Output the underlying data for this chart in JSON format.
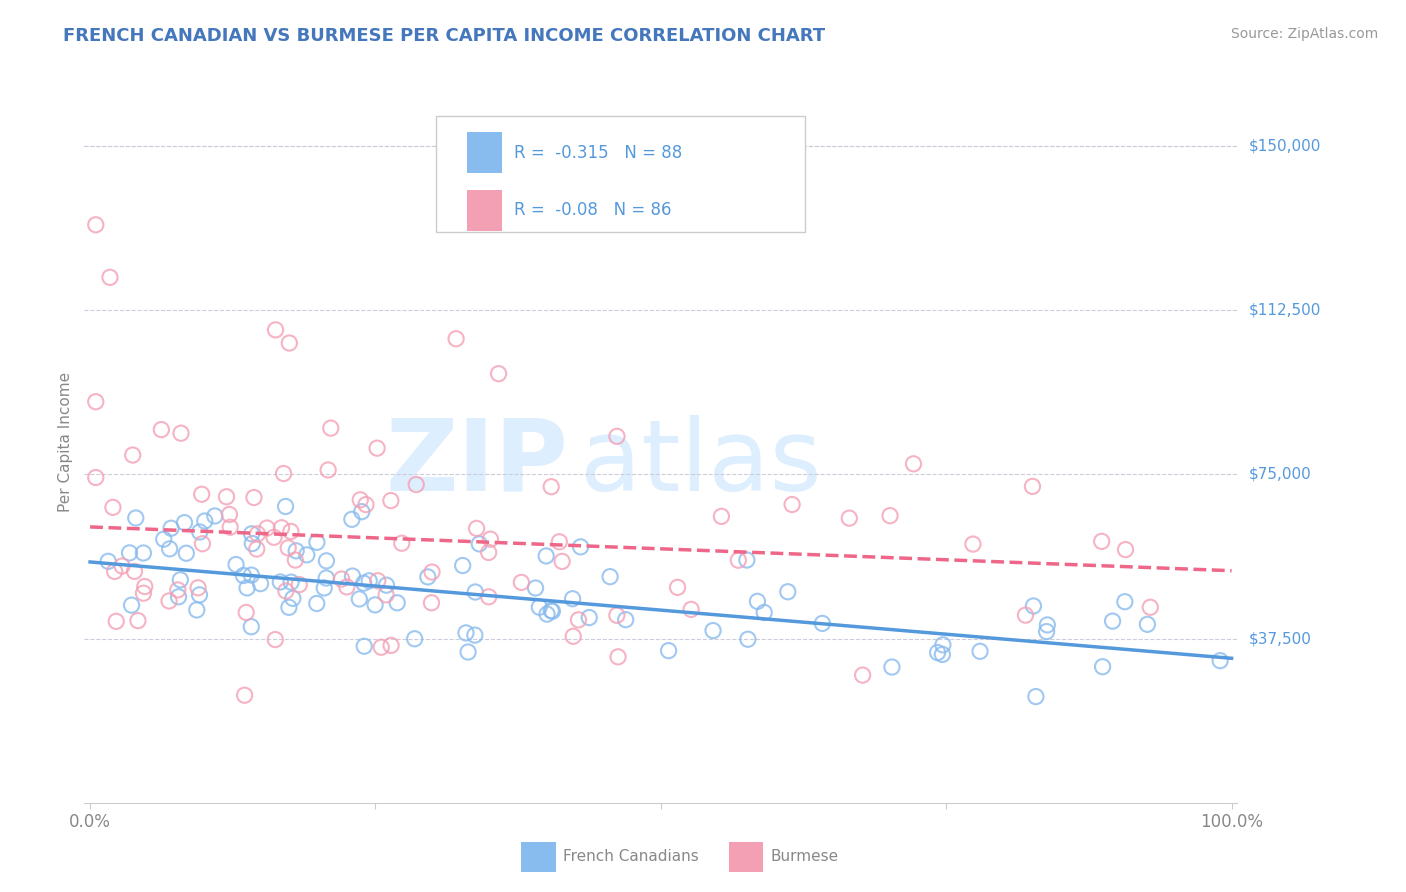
{
  "title": "FRENCH CANADIAN VS BURMESE PER CAPITA INCOME CORRELATION CHART",
  "source": "Source: ZipAtlas.com",
  "ylabel": "Per Capita Income",
  "ytick_labels": [
    "$37,500",
    "$75,000",
    "$112,500",
    "$150,000"
  ],
  "ytick_values": [
    37500,
    75000,
    112500,
    150000
  ],
  "ymax": 165000,
  "ymin": 0,
  "xmin": -0.005,
  "xmax": 1.005,
  "blue_color": "#88BBEE",
  "pink_color": "#F4A0B4",
  "blue_line_color": "#5599DD",
  "pink_line_color": "#EE6688",
  "blue_R": -0.315,
  "blue_N": 88,
  "pink_R": -0.08,
  "pink_N": 86,
  "blue_label": "French Canadians",
  "pink_label": "Burmese",
  "title_color": "#4477BB",
  "source_color": "#999999",
  "grid_color": "#CCCCDD",
  "watermark_color": "#DDEEFF",
  "legend_text_color": "#5599DD",
  "blue_intercept": 55000,
  "blue_slope": -22000,
  "pink_intercept": 63000,
  "pink_slope": -10000
}
